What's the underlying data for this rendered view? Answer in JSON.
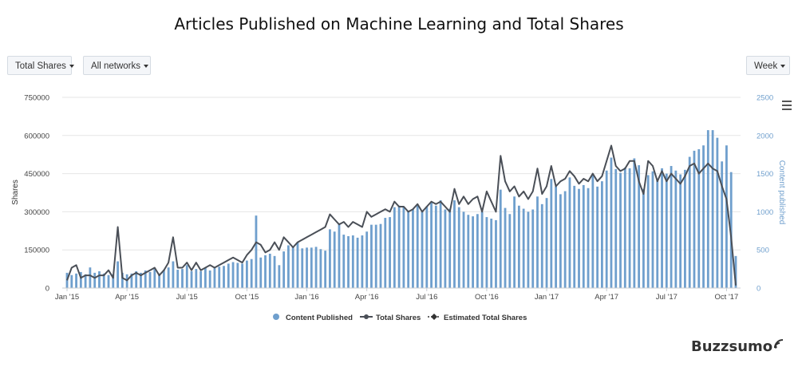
{
  "title": "Articles Published on Machine Learning and Total Shares",
  "controls": {
    "metric_label": "Total Shares",
    "network_label": "All networks",
    "interval_label": "Week"
  },
  "brand": "Buzzsumo",
  "colors": {
    "bars": "#6f9fcd",
    "line": "#4a4f57",
    "grid": "#e6e6e6",
    "right_axis": "#6f9fcd"
  },
  "icons": {
    "menu": "hamburger-icon",
    "brand": "wifi-signal-icon"
  },
  "chart_data": {
    "type": "bar",
    "ylabel": "Shares",
    "y2label": "Content published",
    "ylim": [
      0,
      750000
    ],
    "y2lim": [
      0,
      2500
    ],
    "yticks": [
      "0",
      "150000",
      "300000",
      "450000",
      "600000",
      "750000"
    ],
    "y2ticks": [
      "0",
      "500",
      "1000",
      "1500",
      "2000",
      "2500"
    ],
    "xticks": [
      "Jan '15",
      "Apr '15",
      "Jul '15",
      "Oct '15",
      "Jan '16",
      "Apr '16",
      "Jul '16",
      "Oct '16",
      "Jan '17",
      "Apr '17",
      "Jul '17",
      "Oct '17"
    ],
    "legend_position": "bottom-center",
    "series": [
      {
        "name": "Content Published",
        "type": "bar",
        "axis": "right",
        "values": [
          200,
          170,
          190,
          210,
          180,
          270,
          200,
          220,
          190,
          170,
          180,
          350,
          200,
          180,
          190,
          220,
          200,
          230,
          210,
          250,
          190,
          240,
          270,
          350,
          240,
          250,
          300,
          220,
          250,
          220,
          270,
          230,
          260,
          280,
          290,
          320,
          340,
          330,
          320,
          360,
          380,
          950,
          400,
          430,
          450,
          420,
          300,
          480,
          560,
          540,
          600,
          520,
          530,
          530,
          540,
          510,
          490,
          770,
          740,
          850,
          700,
          680,
          690,
          660,
          690,
          740,
          830,
          830,
          840,
          920,
          930,
          1060,
          1080,
          1060,
          1010,
          1030,
          1080,
          1000,
          1070,
          1130,
          1080,
          1150,
          1030,
          1040,
          1150,
          1060,
          1000,
          960,
          940,
          970,
          1000,
          930,
          910,
          890,
          1290,
          1050,
          970,
          1200,
          1080,
          1040,
          1000,
          1030,
          1200,
          1100,
          1180,
          1430,
          1330,
          1230,
          1270,
          1450,
          1340,
          1300,
          1350,
          1310,
          1500,
          1330,
          1400,
          1540,
          1710,
          1560,
          1510,
          1580,
          1570,
          1700,
          1610,
          1300,
          1480,
          1530,
          1410,
          1570,
          1500,
          1600,
          1540,
          1490,
          1550,
          1720,
          1800,
          1820,
          1870,
          2070,
          2070,
          1970,
          1660,
          1870,
          1520,
          420
        ]
      },
      {
        "name": "Total Shares",
        "type": "line",
        "axis": "left",
        "values": [
          30000,
          80000,
          90000,
          40000,
          50000,
          50000,
          40000,
          50000,
          50000,
          70000,
          40000,
          240000,
          40000,
          30000,
          50000,
          60000,
          50000,
          60000,
          70000,
          80000,
          50000,
          70000,
          100000,
          200000,
          80000,
          80000,
          100000,
          70000,
          100000,
          70000,
          80000,
          90000,
          80000,
          90000,
          100000,
          110000,
          120000,
          110000,
          100000,
          130000,
          150000,
          180000,
          170000,
          140000,
          150000,
          180000,
          150000,
          200000,
          180000,
          160000,
          180000,
          190000,
          200000,
          210000,
          220000,
          230000,
          240000,
          290000,
          270000,
          250000,
          260000,
          240000,
          260000,
          250000,
          240000,
          300000,
          280000,
          290000,
          300000,
          310000,
          300000,
          340000,
          320000,
          320000,
          300000,
          310000,
          330000,
          300000,
          320000,
          340000,
          330000,
          340000,
          320000,
          300000,
          390000,
          330000,
          360000,
          330000,
          350000,
          360000,
          300000,
          380000,
          340000,
          300000,
          520000,
          420000,
          380000,
          400000,
          360000,
          380000,
          350000,
          380000,
          470000,
          370000,
          400000,
          480000,
          400000,
          420000,
          430000,
          460000,
          440000,
          410000,
          430000,
          420000,
          450000,
          420000,
          440000,
          500000,
          560000,
          480000,
          460000,
          470000,
          500000,
          500000,
          420000,
          370000,
          500000,
          480000,
          420000,
          460000,
          420000,
          450000,
          430000,
          410000,
          440000,
          480000,
          490000,
          450000,
          470000,
          490000,
          470000,
          460000,
          400000,
          350000,
          200000,
          10000
        ]
      },
      {
        "name": "Estimated Total Shares",
        "type": "line",
        "axis": "left",
        "values": []
      }
    ]
  }
}
